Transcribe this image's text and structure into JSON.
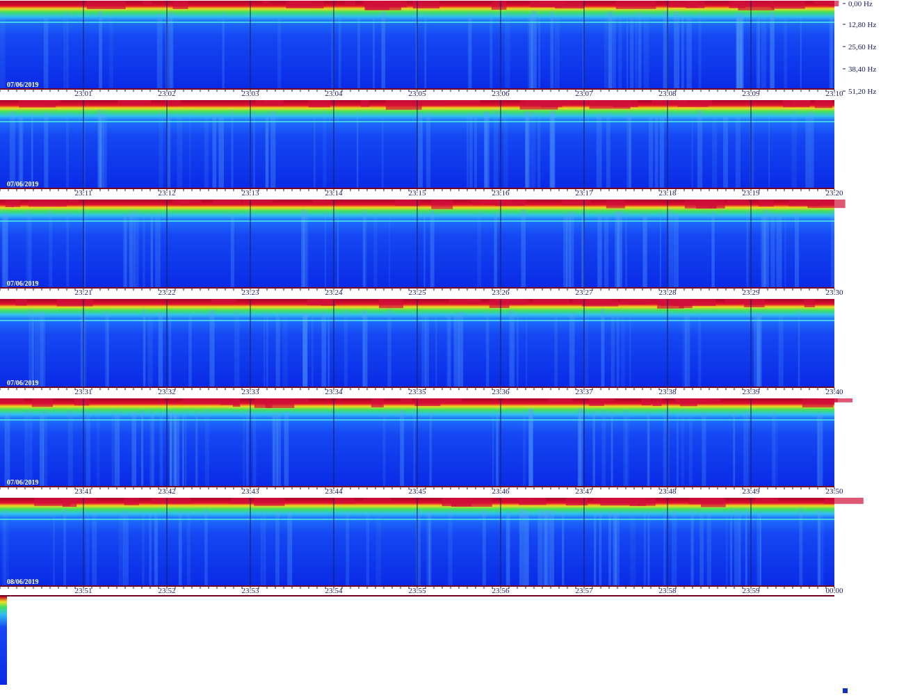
{
  "frequency_axis": [
    "0,00 Hz",
    "12,80 Hz",
    "25,60 Hz",
    "38,40 Hz",
    "51,20 Hz"
  ],
  "rows": [
    {
      "date": "07/06/2019",
      "times": [
        "23:01",
        "23:02",
        "23:03",
        "23:04",
        "23:05",
        "23:06",
        "23:07",
        "23:08",
        "23:09",
        "23:10"
      ]
    },
    {
      "date": "07/06/2019",
      "times": [
        "23:11",
        "23:12",
        "23:13",
        "23:14",
        "23:15",
        "23:16",
        "23:17",
        "23:18",
        "23:19",
        "23:20"
      ]
    },
    {
      "date": "07/06/2019",
      "times": [
        "23:21",
        "23:22",
        "23:23",
        "23:24",
        "23:25",
        "23:26",
        "23:27",
        "23:28",
        "23:29",
        "23:30"
      ]
    },
    {
      "date": "07/06/2019",
      "times": [
        "23:31",
        "23:32",
        "23:33",
        "23:34",
        "23:35",
        "23:36",
        "23:37",
        "23:38",
        "23:39",
        "23:40"
      ]
    },
    {
      "date": "07/06/2019",
      "times": [
        "23:41",
        "23:42",
        "23:43",
        "23:44",
        "23:45",
        "23:46",
        "23:47",
        "23:48",
        "23:49",
        "23:50"
      ]
    },
    {
      "date": "08/06/2019",
      "times": [
        "23:51",
        "23:52",
        "23:53",
        "23:54",
        "23:55",
        "23:56",
        "23:57",
        "23:58",
        "23:59",
        "00:00"
      ]
    }
  ]
}
